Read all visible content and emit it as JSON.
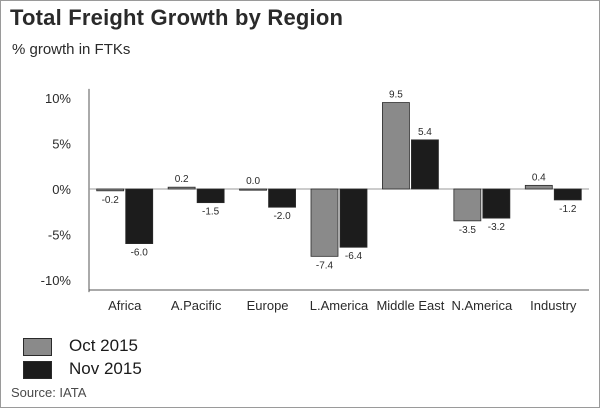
{
  "chart_data": {
    "type": "bar",
    "title": "Total Freight Growth by Region",
    "subtitle": "% growth in FTKs",
    "categories": [
      "Africa",
      "A.Pacific",
      "Europe",
      "L.America",
      "Middle East",
      "N.America",
      "Industry"
    ],
    "series": [
      {
        "name": "Oct 2015",
        "color": "#8a8a8a",
        "values": [
          -0.2,
          0.2,
          0.0,
          -7.4,
          9.5,
          -3.5,
          0.4
        ],
        "labels": [
          "-0.2",
          "0.2",
          "0.0",
          "-7.4",
          "9.5",
          "-3.5",
          "0.4"
        ]
      },
      {
        "name": "Nov 2015",
        "color": "#1c1c1c",
        "values": [
          -6.0,
          -1.5,
          -2.0,
          -6.4,
          5.4,
          -3.2,
          -1.2
        ],
        "labels": [
          "-6.0",
          "-1.5",
          "-2.0",
          "-6.4",
          "5.4",
          "-3.2",
          "-1.2"
        ]
      }
    ],
    "y_ticks": [
      10,
      5,
      0,
      -5,
      -10
    ],
    "y_tick_labels": [
      "10%",
      "5%",
      "0%",
      "-5%",
      "-10%"
    ],
    "ylim": [
      -11,
      11
    ],
    "grid": false,
    "legend_position": "bottom-left",
    "source": "Source: IATA"
  }
}
